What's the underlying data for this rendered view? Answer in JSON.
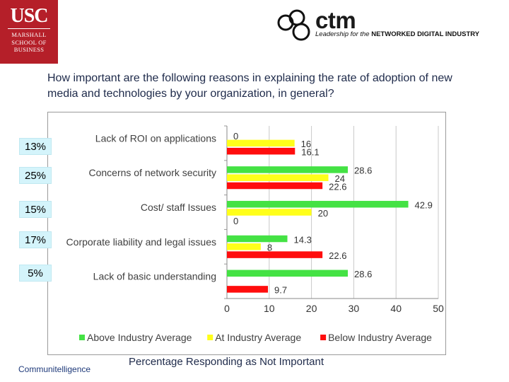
{
  "header": {
    "usc_big": "USC",
    "usc_lines": [
      "MARSHALL",
      "SCHOOL OF",
      "BUSINESS"
    ],
    "ctm_name": "ctm",
    "ctm_tag_italic": "Leadership for the",
    "ctm_tag_bold": "NETWORKED DIGITAL INDUSTRY"
  },
  "question": "How important are the following reasons in explaining the rate of adoption of new media and technologies by your organization, in general?",
  "percent_badges": [
    "13%",
    "25%",
    "15%",
    "17%",
    "5%"
  ],
  "footer": {
    "left": "Communitelligence",
    "right": "Percentage Responding as Not Important"
  },
  "colors": {
    "above": "#44e244",
    "at": "#ffff1a",
    "below": "#ff0d0d",
    "logo_red": "#b51f29",
    "badge_bg": "#d4f4fb"
  },
  "chart_data": {
    "type": "bar",
    "orientation": "horizontal",
    "categories": [
      "Lack of ROI on applications",
      "Concerns of network security",
      "Cost/ staff Issues",
      "Corporate liability and legal issues",
      "Lack of basic understanding"
    ],
    "series": [
      {
        "name": "Above Industry Average",
        "values": [
          0,
          28.6,
          42.9,
          14.3,
          28.6
        ],
        "labels": [
          "0",
          "28.6",
          "42.9",
          "14.3",
          "28.6"
        ]
      },
      {
        "name": "At Industry Average",
        "values": [
          16,
          24,
          20,
          8,
          0
        ],
        "labels": [
          "16",
          "24",
          "20",
          "8",
          ""
        ]
      },
      {
        "name": "Below Industry Average",
        "values": [
          16.1,
          22.6,
          0,
          22.6,
          9.7
        ],
        "labels": [
          "16.1",
          "22.6",
          "0",
          "22.6",
          "9.7"
        ]
      }
    ],
    "xlim": [
      0,
      50
    ],
    "xticks": [
      0,
      10,
      20,
      30,
      40,
      50
    ],
    "xlabel": "",
    "ylabel": "",
    "grid": "vertical",
    "legend": "bottom"
  }
}
